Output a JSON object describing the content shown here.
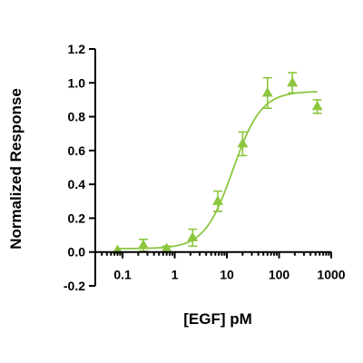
{
  "chart_data": {
    "type": "scatter",
    "xlabel": "[EGF] pM",
    "ylabel": "Normalized Response",
    "x_scale": "log",
    "xlim": [
      0.03,
      1000
    ],
    "ylim": [
      -0.2,
      1.2
    ],
    "x_tick_values": [
      0.1,
      1,
      10,
      100,
      1000
    ],
    "x_tick_labels": [
      "0.1",
      "1",
      "10",
      "100",
      "1000"
    ],
    "y_tick_values": [
      -0.2,
      0.0,
      0.2,
      0.4,
      0.6,
      0.8,
      1.0,
      1.2
    ],
    "y_tick_labels": [
      "-0.2",
      "0.0",
      "0.2",
      "0.4",
      "0.6",
      "0.8",
      "1.0",
      "1.2"
    ],
    "series": [
      {
        "color": "#8cc63f",
        "marker": "triangle",
        "points": [
          {
            "x": 0.08,
            "y": 0.01,
            "err": 0.0
          },
          {
            "x": 0.25,
            "y": 0.04,
            "err": 0.035
          },
          {
            "x": 0.7,
            "y": 0.02,
            "err": 0.015
          },
          {
            "x": 2.2,
            "y": 0.085,
            "err": 0.05
          },
          {
            "x": 6.7,
            "y": 0.3,
            "err": 0.06
          },
          {
            "x": 20,
            "y": 0.64,
            "err": 0.07
          },
          {
            "x": 60,
            "y": 0.94,
            "err": 0.09
          },
          {
            "x": 180,
            "y": 1.0,
            "err": 0.06
          },
          {
            "x": 540,
            "y": 0.86,
            "err": 0.04
          }
        ],
        "fit": {
          "bottom": 0.02,
          "top": 0.95,
          "ec50": 13,
          "hill": 1.6,
          "x_from": 0.08,
          "x_to": 540
        }
      }
    ]
  }
}
